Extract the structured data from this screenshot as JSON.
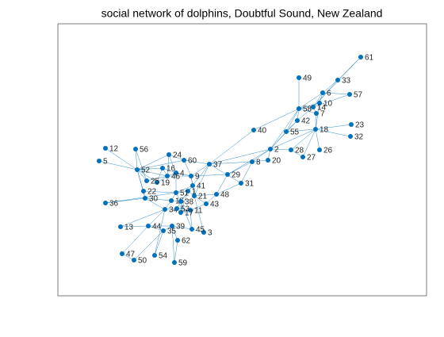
{
  "title": "social network of dolphins, Doubtful Sound, New Zealand",
  "nodes": [
    1,
    2,
    3,
    4,
    5,
    6,
    7,
    8,
    9,
    10,
    11,
    12,
    13,
    14,
    15,
    16,
    17,
    18,
    19,
    20,
    21,
    22,
    23,
    24,
    25,
    26,
    27,
    28,
    29,
    30,
    31,
    32,
    33,
    34,
    35,
    36,
    37,
    38,
    39,
    40,
    41,
    42,
    43,
    44,
    45,
    46,
    47,
    48,
    49,
    50,
    51,
    52,
    53,
    54,
    55,
    56,
    57,
    58,
    59,
    60,
    61,
    62
  ]
}
